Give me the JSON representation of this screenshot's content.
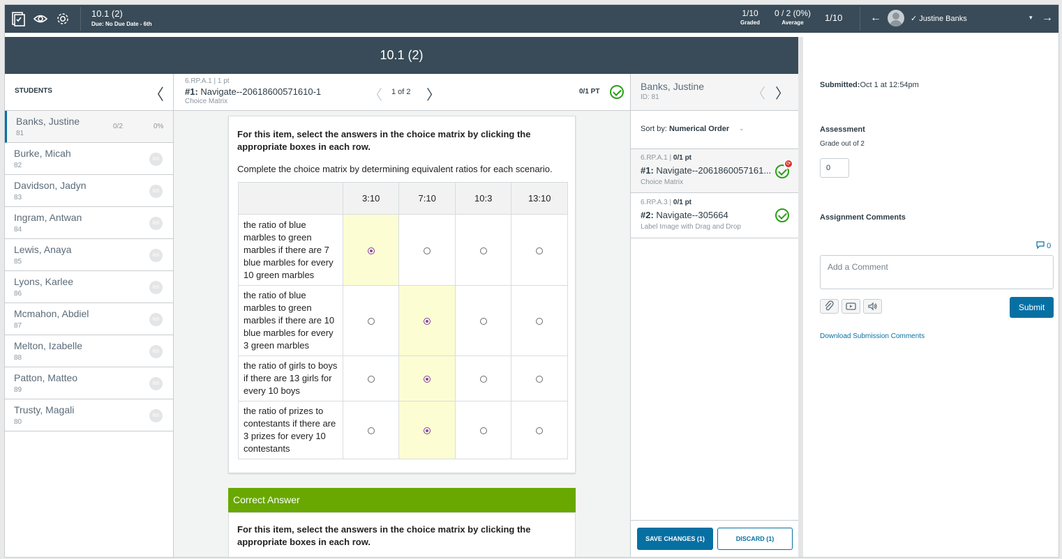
{
  "header": {
    "assignment_title": "10.1 (2)",
    "due": "Due: No Due Date - 6th",
    "graded_value": "1/10",
    "graded_label": "Graded",
    "average_value": "0 / 2 (0%)",
    "average_label": "Average",
    "student_pager": "1/10",
    "current_student": "✓ Justine Banks",
    "prev_arrow": "←",
    "next_arrow": "→",
    "caret": "▾"
  },
  "title_band": "10.1 (2)",
  "students": {
    "heading": "STUDENTS",
    "back": "〈",
    "list": [
      {
        "name": "Banks, Justine",
        "id": "81",
        "score": "0/2",
        "pct": "0%"
      },
      {
        "name": "Burke, Micah",
        "id": "82",
        "badge": "NS"
      },
      {
        "name": "Davidson, Jadyn",
        "id": "83",
        "badge": "NS"
      },
      {
        "name": "Ingram, Antwan",
        "id": "84",
        "badge": "NS"
      },
      {
        "name": "Lewis, Anaya",
        "id": "85",
        "badge": "NS"
      },
      {
        "name": "Lyons, Karlee",
        "id": "86",
        "badge": "NS"
      },
      {
        "name": "Mcmahon, Abdiel",
        "id": "87",
        "badge": "NS"
      },
      {
        "name": "Melton, Izabelle",
        "id": "88",
        "badge": "NS"
      },
      {
        "name": "Patton, Matteo",
        "id": "89",
        "badge": "NS"
      },
      {
        "name": "Trusty, Magali",
        "id": "80",
        "badge": "NS"
      }
    ]
  },
  "question_header": {
    "standard": "6.RP.A.1  |  1 pt",
    "number": "#1:",
    "title": " Navigate--20618600571610-1",
    "type": "Choice Matrix",
    "pager": "1 of 2",
    "points": "0/1 PT",
    "prev": "〈",
    "next": "〉"
  },
  "item": {
    "instructions": "For this item, select the answers in the choice matrix by clicking the appropriate boxes in each row.",
    "prompt": "Complete the choice matrix by determining equivalent ratios for each scenario.",
    "columns": [
      "3:10",
      "7:10",
      "10:3",
      "13:10"
    ],
    "rows": [
      {
        "text": "the ratio of blue marbles to green marbles if there are 7 blue marbles for every 10 green marbles",
        "selected": 0
      },
      {
        "text": "the ratio of blue marbles to green marbles if there are 10 blue marbles for every 3 green marbles",
        "selected": 1
      },
      {
        "text": "the ratio of girls to boys if there are 13 girls for every 10 boys",
        "selected": 1
      },
      {
        "text": "the ratio of prizes to contestants if there are 3 prizes for every 10 contestants",
        "selected": 1
      }
    ],
    "correct_answer_label": "Correct Answer",
    "correct_instructions": "For this item, select the answers in the choice matrix by clicking the appropriate boxes in each row."
  },
  "question_list": {
    "student_name": "Banks, Justine",
    "student_id": "ID: 81",
    "prev": "〈",
    "next": "〉",
    "sort_label": "Sort by:",
    "sort_value": "Numerical Order",
    "sort_caret": "⌄",
    "items": [
      {
        "standard": "6.RP.A.1  |  ",
        "pts": "0/1 pt",
        "number": "#1:",
        "title": " Navigate--2061860057161...",
        "type": "Choice Matrix",
        "sync_badge": "⟳"
      },
      {
        "standard": "6.RP.A.3  |  ",
        "pts": "0/1 pt",
        "number": "#2:",
        "title": " Navigate--305664",
        "type": "Label Image with Drag and Drop"
      }
    ],
    "save_label": "SAVE CHANGES (1)",
    "discard_label": "DISCARD (1)"
  },
  "right_panel": {
    "submitted_label": "Submitted:",
    "submitted_value": "Oct 1 at 12:54pm",
    "assessment_label": "Assessment",
    "grade_out_of": "Grade out of 2",
    "grade_value": "0",
    "comments_label": "Assignment Comments",
    "comment_count": "0",
    "comment_placeholder": "Add a Comment",
    "submit_label": "Submit",
    "download_link": "Download Submission Comments"
  },
  "colors": {
    "header_bg": "#394b58",
    "accent": "#0770a3",
    "correct_green": "#68a800",
    "check_green": "#2d9e1a",
    "selected_cell": "#fdfdd3",
    "alert_red": "#e12d2d"
  }
}
